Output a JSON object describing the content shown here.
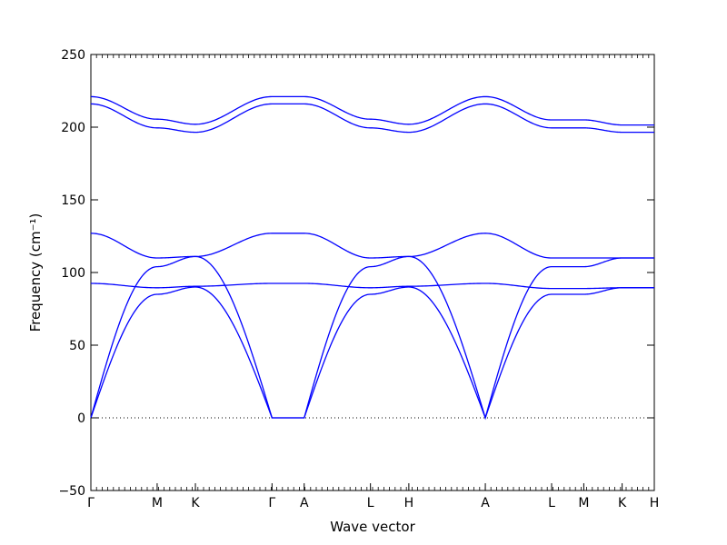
{
  "chart_data": {
    "type": "line",
    "title": "",
    "xlabel": "Wave vector",
    "ylabel": "Frequency (cm⁻¹)",
    "ylim": [
      -50,
      250
    ],
    "y_ticks": [
      -50,
      0,
      50,
      100,
      150,
      200,
      250
    ],
    "y_tick_labels": [
      "−50",
      "0",
      "50",
      "100",
      "150",
      "200",
      "250"
    ],
    "x_ticks": [
      {
        "label": "Γ",
        "x": 0
      },
      {
        "label": "M",
        "x": 0.577
      },
      {
        "label": "K",
        "x": 0.91
      },
      {
        "label": "Γ",
        "x": 1.577
      },
      {
        "label": "A",
        "x": 1.857
      },
      {
        "label": "L",
        "x": 2.434
      },
      {
        "label": "H",
        "x": 2.768
      },
      {
        "label": "A",
        "x": 3.434
      },
      {
        "label": "L",
        "x": 4.011
      },
      {
        "label": "M",
        "x": 4.291
      },
      {
        "label": "K",
        "x": 4.625
      },
      {
        "label": "H",
        "x": 4.905
      }
    ],
    "xlim": [
      0,
      4.905
    ],
    "zero_line": {
      "y": 0,
      "style": "dotted"
    },
    "grid": false,
    "line_color": "#0000ff",
    "band_keypoints": {
      "positions": [
        0,
        0.577,
        0.91,
        1.577,
        1.857,
        2.434,
        2.768,
        3.434,
        4.011,
        4.291,
        4.625,
        4.905
      ],
      "optic_high_upper": [
        221,
        205.5,
        202,
        221,
        221,
        205.5,
        202,
        221,
        205,
        205,
        201.5,
        201.5
      ],
      "optic_high_lower": [
        216,
        199.5,
        196.5,
        216,
        216,
        199.5,
        196.5,
        216,
        199.5,
        199.5,
        196.5,
        196.5
      ],
      "mid_upper": [
        127,
        110,
        111,
        127,
        127,
        110,
        111,
        127,
        110,
        110,
        110,
        110
      ],
      "mid_lower": [
        92.5,
        89.5,
        90.5,
        92.5,
        92.5,
        89.5,
        90.5,
        92.5,
        89,
        89,
        89.5,
        89.5
      ],
      "acoustic_upper": [
        0,
        104,
        111,
        0,
        0,
        104,
        111,
        0,
        104,
        104,
        110,
        110
      ],
      "acoustic_lower": [
        0,
        85,
        90,
        0,
        0,
        85,
        90,
        0,
        85,
        85,
        89.5,
        89.5
      ]
    }
  }
}
